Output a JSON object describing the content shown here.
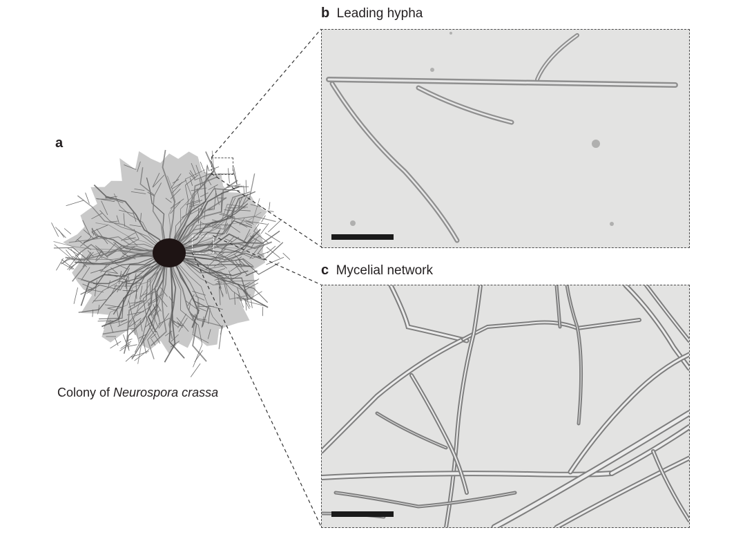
{
  "panel_a": {
    "letter": "a",
    "caption_prefix": "Colony of ",
    "caption_species": "Neurospora crassa"
  },
  "panel_b": {
    "letter": "b",
    "title": "Leading hypha"
  },
  "panel_c": {
    "letter": "c",
    "title": "Mycelial network"
  },
  "colors": {
    "background": "#ffffff",
    "micrograph_bg": "#e3e3e2",
    "colony": "#6e6e6e",
    "colony_center": "#1e1414",
    "scale_bar": "#1a1a1a",
    "text": "#231f20"
  }
}
